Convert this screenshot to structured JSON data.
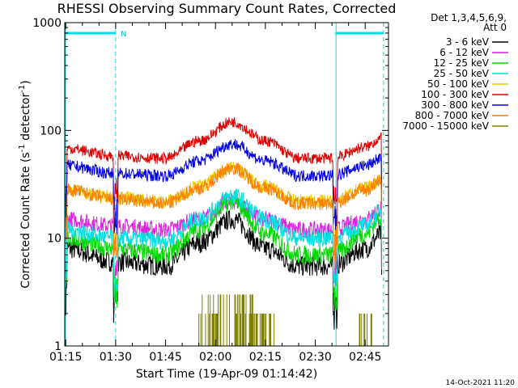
{
  "chart_data": {
    "type": "line",
    "title": "RHESSI Observing Summary Count Rates, Corrected",
    "xlabel": "Start Time (19-Apr-09 01:14:42)",
    "ylabel_main": "Corrected Count Rate (s",
    "ylabel_sup1": "-1",
    "ylabel_mid": " detector",
    "ylabel_sup2": "-1",
    "ylabel_end": ")",
    "yscale": "log",
    "ylim": [
      1,
      1000
    ],
    "xlim": [
      "01:14:42",
      "02:52:00"
    ],
    "x_ticks": [
      "01:15",
      "01:30",
      "01:45",
      "02:00",
      "02:15",
      "02:30",
      "02:45"
    ],
    "y_ticks": [
      "1",
      "10",
      "100",
      "1000"
    ],
    "legend_header": [
      "Det 1,3,4,5,6,9,",
      "Att 0"
    ],
    "legend_placement": "right",
    "timestamp": "14-Oct-2021 11:20",
    "night_marker_label": "N",
    "night_intervals": [
      [
        "01:14:42",
        "01:30:00"
      ],
      [
        "02:36:00",
        "02:50:30"
      ]
    ],
    "series": [
      {
        "name": "3 - 6 keV",
        "color": "#000000",
        "x": [
          "01:15",
          "01:30",
          "01:45",
          "01:55",
          "02:05",
          "02:15",
          "02:25",
          "02:35",
          "02:45",
          "02:50"
        ],
        "y": [
          8,
          6,
          5.5,
          9,
          15,
          8,
          5.5,
          5.5,
          8,
          11
        ]
      },
      {
        "name": "6 - 12 keV",
        "color": "#e020e0",
        "x": [
          "01:15",
          "01:30",
          "01:45",
          "01:55",
          "02:05",
          "02:15",
          "02:25",
          "02:35",
          "02:45",
          "02:50"
        ],
        "y": [
          15,
          13,
          12,
          15,
          22,
          15,
          12,
          12,
          15,
          19
        ]
      },
      {
        "name": "12 - 25 keV",
        "color": "#00d800",
        "x": [
          "01:15",
          "01:30",
          "01:45",
          "01:55",
          "02:05",
          "02:15",
          "02:25",
          "02:35",
          "02:45",
          "02:50"
        ],
        "y": [
          10,
          8,
          7,
          12,
          22,
          11,
          7,
          7,
          11,
          16
        ]
      },
      {
        "name": "25 - 50 keV",
        "color": "#00e0e0",
        "x": [
          "01:15",
          "01:30",
          "01:45",
          "01:55",
          "02:05",
          "02:15",
          "02:25",
          "02:35",
          "02:45",
          "02:50"
        ],
        "y": [
          12,
          10,
          9.5,
          15,
          25,
          15,
          10,
          10,
          13,
          18
        ]
      },
      {
        "name": "50 - 100 keV",
        "color": "#e8c800",
        "x": [
          "01:15",
          "01:30",
          "01:45",
          "01:55",
          "02:05",
          "02:15",
          "02:25",
          "02:35",
          "02:45",
          "02:50"
        ],
        "y": [
          28,
          24,
          22,
          30,
          45,
          30,
          22,
          22,
          29,
          35
        ]
      },
      {
        "name": "100 - 300 keV",
        "color": "#e00000",
        "x": [
          "01:15",
          "01:30",
          "01:45",
          "01:55",
          "02:05",
          "02:15",
          "02:25",
          "02:35",
          "02:45",
          "02:50"
        ],
        "y": [
          68,
          58,
          55,
          80,
          120,
          80,
          55,
          55,
          70,
          85
        ]
      },
      {
        "name": "300 - 800 keV",
        "color": "#0000e0",
        "x": [
          "01:15",
          "01:30",
          "01:45",
          "01:55",
          "02:05",
          "02:15",
          "02:25",
          "02:35",
          "02:45",
          "02:50"
        ],
        "y": [
          47,
          40,
          38,
          52,
          75,
          52,
          38,
          38,
          47,
          56
        ]
      },
      {
        "name": "800 - 7000 keV",
        "color": "#ff7f00",
        "x": [
          "01:15",
          "01:30",
          "01:45",
          "01:55",
          "02:05",
          "02:15",
          "02:25",
          "02:35",
          "02:45",
          "02:50"
        ],
        "y": [
          28,
          23,
          21,
          29,
          45,
          29,
          21,
          21,
          28,
          35
        ]
      },
      {
        "name": "7000 - 15000 keV",
        "color": "#808000",
        "x": [
          "01:15",
          "01:30",
          "01:45",
          "01:55",
          "02:05",
          "02:15",
          "02:25",
          "02:35",
          "02:45",
          "02:50"
        ],
        "y": [
          1,
          1,
          1,
          2,
          3,
          2,
          1,
          1,
          2,
          1
        ]
      }
    ]
  }
}
